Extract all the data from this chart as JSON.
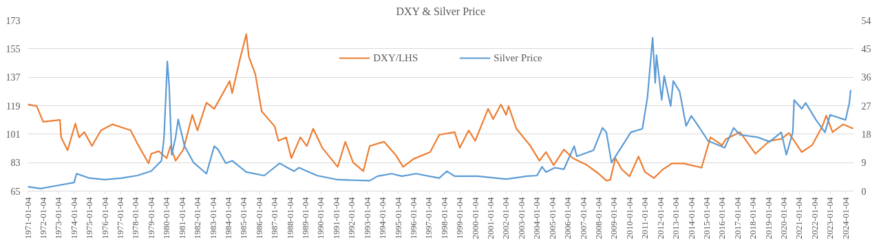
{
  "chart_data": {
    "type": "line",
    "title": "DXY & Silver Price",
    "xlim": [
      "1971-01-04",
      "2024-07-15"
    ],
    "xticks": [
      "1971-01-04",
      "1972-01-04",
      "1973-01-04",
      "1974-01-04",
      "1975-01-04",
      "1976-01-04",
      "1977-01-04",
      "1978-01-04",
      "1979-01-04",
      "1980-01-04",
      "1981-01-04",
      "1982-01-04",
      "1983-01-04",
      "1984-01-04",
      "1985-01-04",
      "1986-01-04",
      "1987-01-04",
      "1988-01-04",
      "1989-01-04",
      "1990-01-04",
      "1991-01-04",
      "1992-01-04",
      "1993-01-04",
      "1994-01-04",
      "1995-01-04",
      "1996-01-04",
      "1997-01-04",
      "1998-01-04",
      "1999-01-04",
      "2000-01-04",
      "2001-01-04",
      "2002-01-04",
      "2003-01-04",
      "2004-01-04",
      "2005-01-04",
      "2006-01-04",
      "2007-01-04",
      "2008-01-04",
      "2009-01-04",
      "2010-01-04",
      "2011-01-04",
      "2012-01-04",
      "2013-01-04",
      "2014-01-04",
      "2015-01-04",
      "2016-01-04",
      "2017-01-04",
      "2018-01-04",
      "2019-01-04",
      "2020-01-04",
      "2021-01-04",
      "2022-01-04",
      "2023-01-04",
      "2024-01-04"
    ],
    "ylim": [
      65,
      173
    ],
    "yticks": [
      65,
      83,
      101,
      119,
      137,
      155,
      173
    ],
    "y2lim": [
      0,
      54
    ],
    "y2ticks": [
      0,
      9,
      18,
      27,
      36,
      45,
      54
    ],
    "grid": "y",
    "legend": "top",
    "series": [
      {
        "name": "DXY/LHS",
        "color": "#ed7d31",
        "x": [
          "1971-01-04",
          "1971-08",
          "1972-01",
          "1973-02",
          "1973-03",
          "1973-08",
          "1974-02",
          "1974-05",
          "1974-09",
          "1975-03",
          "1975-10",
          "1976-07",
          "1977-09",
          "1978-03",
          "1978-11",
          "1979-01",
          "1979-07",
          "1980-01",
          "1980-04",
          "1980-08",
          "1981-02",
          "1981-09",
          "1982-01",
          "1982-08",
          "1983-02",
          "1984-02",
          "1984-04",
          "1984-10",
          "1985-03",
          "1985-05",
          "1985-10",
          "1986-03",
          "1987-01",
          "1987-04",
          "1987-10",
          "1988-02",
          "1988-09",
          "1989-02",
          "1989-07",
          "1990-02",
          "1991-02",
          "1991-08",
          "1992-02",
          "1992-10",
          "1993-03",
          "1994-02",
          "1994-11",
          "1995-05",
          "1996-01",
          "1997-02",
          "1997-09",
          "1998-09",
          "1999-01",
          "1999-08",
          "2000-01",
          "2000-11",
          "2001-03",
          "2001-09",
          "2002-01",
          "2002-03",
          "2002-09",
          "2003-08",
          "2004-03",
          "2004-08",
          "2005-02",
          "2005-10",
          "2006-05",
          "2007-04",
          "2008-01",
          "2008-07",
          "2008-10",
          "2009-02",
          "2009-07",
          "2010-01",
          "2010-08",
          "2011-01",
          "2011-08",
          "2012-03",
          "2012-10",
          "2013-07",
          "2014-09",
          "2015-04",
          "2016-01",
          "2016-04",
          "2017-03",
          "2018-03",
          "2019-02",
          "2019-11",
          "2020-05",
          "2021-03",
          "2021-11",
          "2022-07",
          "2022-10",
          "2023-03",
          "2023-11",
          "2024-07"
        ],
        "values": [
          119.8,
          118.7,
          108.8,
          110,
          99,
          90.8,
          107.7,
          99,
          102.3,
          93.5,
          103.4,
          107.2,
          103.4,
          94,
          82.5,
          88.6,
          90.2,
          85.8,
          93.5,
          84.2,
          91.3,
          113.2,
          103.4,
          120.9,
          117,
          134.6,
          126.9,
          148.3,
          164.2,
          149.9,
          139,
          115.4,
          106,
          96.8,
          99,
          85.8,
          99,
          93.5,
          104.5,
          92.4,
          80.3,
          96.2,
          83.1,
          77.6,
          93.5,
          96.2,
          88,
          80.3,
          85.3,
          89.7,
          100.6,
          102.3,
          92.4,
          103.4,
          96.8,
          117,
          110.5,
          119.8,
          113.2,
          118.7,
          104.5,
          93.5,
          84.2,
          89.7,
          81.4,
          91.3,
          85.8,
          81.4,
          76,
          71.6,
          72.1,
          85.8,
          78.7,
          74.3,
          86.9,
          77.1,
          73.2,
          78.7,
          82.5,
          82.5,
          79.8,
          99,
          94,
          97.9,
          102.3,
          88.6,
          96.8,
          97.9,
          101.7,
          89.7,
          94,
          106,
          112.7,
          102.3,
          107.2,
          104.5
        ]
      },
      {
        "name": "Silver Price",
        "color": "#5b9bd5",
        "axis": "y2",
        "x": [
          "1971-01-04",
          "1971-11",
          "1973-02",
          "1974-01",
          "1974-03",
          "1975-01",
          "1976-01",
          "1977-02",
          "1978-02",
          "1979-01",
          "1979-09",
          "1979-11",
          "1980-01-18",
          "1980-03",
          "1980-05",
          "1980-08",
          "1980-10",
          "1981-03",
          "1981-10",
          "1982-08",
          "1983-02",
          "1983-05",
          "1983-11",
          "1984-04",
          "1985-03",
          "1986-05",
          "1987-05",
          "1987-11",
          "1988-04",
          "1988-08",
          "1989-10",
          "1991-02",
          "1993-03",
          "1993-09",
          "1994-08",
          "1995-04",
          "1996-03",
          "1997-09",
          "1998-03",
          "1998-09",
          "2000-03",
          "2002-01",
          "2003-05",
          "2004-01",
          "2004-05",
          "2004-08",
          "2005-03",
          "2005-10",
          "2006-06",
          "2006-08",
          "2007-09",
          "2008-04",
          "2008-07",
          "2008-11",
          "2010-02",
          "2010-11",
          "2011-03",
          "2011-07",
          "2011-09",
          "2011-10",
          "2012-02",
          "2012-04",
          "2012-09",
          "2012-11",
          "2013-04",
          "2013-09",
          "2014-01",
          "2014-08",
          "2015-02",
          "2016-03",
          "2016-10",
          "2017-03",
          "2018-05",
          "2019-02",
          "2019-11",
          "2020-03",
          "2020-08",
          "2020-09",
          "2021-03",
          "2021-06",
          "2022-02",
          "2022-09",
          "2023-01",
          "2024-01",
          "2024-04",
          "2024-05"
        ],
        "values": [
          1.4,
          0.8,
          1.9,
          2.7,
          5.5,
          4.1,
          3.6,
          4.1,
          4.9,
          6.3,
          9.6,
          17,
          41,
          33.4,
          11.5,
          17,
          22.7,
          14.2,
          9,
          5.5,
          14.2,
          13.2,
          8.8,
          9.6,
          6,
          4.9,
          8.8,
          7.4,
          6.3,
          7.4,
          4.9,
          3.6,
          3.3,
          4.7,
          5.5,
          4.7,
          5.5,
          4.1,
          6.3,
          4.7,
          4.7,
          3.8,
          4.7,
          4.9,
          7.7,
          6,
          7.4,
          6.9,
          14.2,
          11,
          12.9,
          20,
          18.6,
          9,
          18.6,
          19.7,
          29.6,
          48.5,
          34.2,
          43,
          28.8,
          36.4,
          26.9,
          34.8,
          31.5,
          20.6,
          23.8,
          19.7,
          15.9,
          13.7,
          20,
          17.8,
          17,
          15.6,
          18.6,
          11.5,
          18.6,
          28.8,
          26,
          27.9,
          22.5,
          18.6,
          24.1,
          22.5,
          27.9,
          32
        ]
      }
    ]
  }
}
